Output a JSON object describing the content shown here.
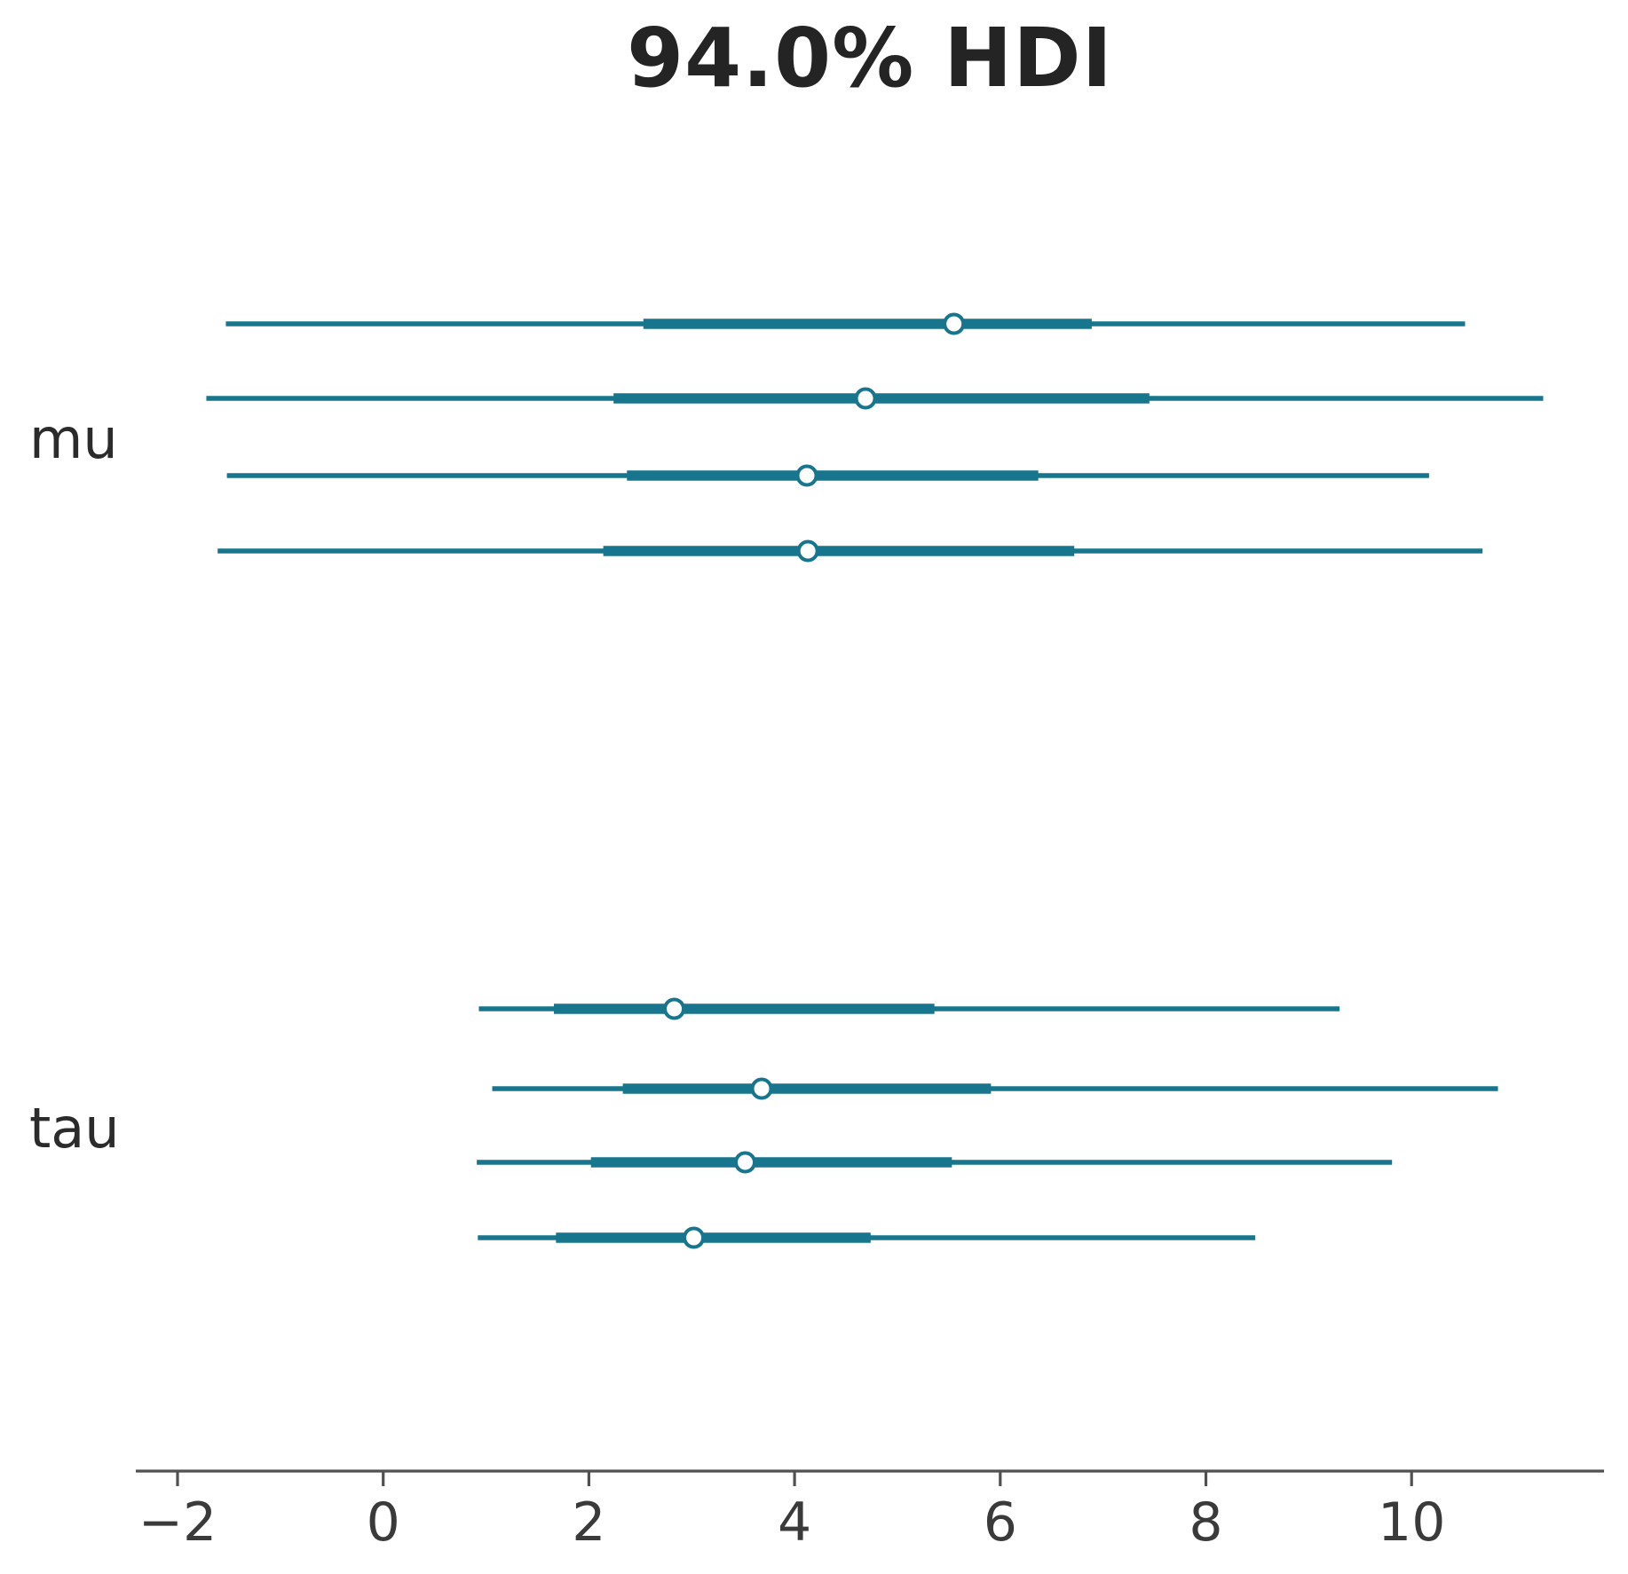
{
  "chart_data": {
    "type": "forest",
    "title": "94.0% HDI",
    "subtitle": "",
    "xlabel": "",
    "ylabel": "",
    "legend": null,
    "grid": false,
    "x_axis": {
      "range": [
        -2.4,
        11.9
      ],
      "ticks": [
        {
          "value": -2,
          "label": "−2"
        },
        {
          "value": 0,
          "label": "0"
        },
        {
          "value": 2,
          "label": "2"
        },
        {
          "value": 4,
          "label": "4"
        },
        {
          "value": 6,
          "label": "6"
        },
        {
          "value": 8,
          "label": "8"
        },
        {
          "value": 10,
          "label": "10"
        }
      ]
    },
    "groups": [
      {
        "label": "mu",
        "rows": [
          {
            "hdi_low": -1.53,
            "q25": 2.53,
            "median": 5.55,
            "q75": 6.89,
            "hdi_high": 10.52
          },
          {
            "hdi_low": -1.72,
            "q25": 2.24,
            "median": 4.69,
            "q75": 7.45,
            "hdi_high": 11.28
          },
          {
            "hdi_low": -1.52,
            "q25": 2.37,
            "median": 4.12,
            "q75": 6.37,
            "hdi_high": 10.17
          },
          {
            "hdi_low": -1.61,
            "q25": 2.14,
            "median": 4.13,
            "q75": 6.72,
            "hdi_high": 10.69
          }
        ]
      },
      {
        "label": "tau",
        "rows": [
          {
            "hdi_low": 0.93,
            "q25": 1.66,
            "median": 2.83,
            "q75": 5.36,
            "hdi_high": 9.3
          },
          {
            "hdi_low": 1.06,
            "q25": 2.33,
            "median": 3.68,
            "q75": 5.91,
            "hdi_high": 10.84
          },
          {
            "hdi_low": 0.91,
            "q25": 2.02,
            "median": 3.52,
            "q75": 5.53,
            "hdi_high": 9.81
          },
          {
            "hdi_low": 0.92,
            "q25": 1.68,
            "median": 3.02,
            "q75": 4.74,
            "hdi_high": 8.48
          }
        ]
      }
    ],
    "colors": {
      "interval": "#17768e",
      "marker_fill": "#ffffff",
      "axis": "#515151",
      "tick_label": "#3a3a3a",
      "title_text": "#242424"
    }
  }
}
